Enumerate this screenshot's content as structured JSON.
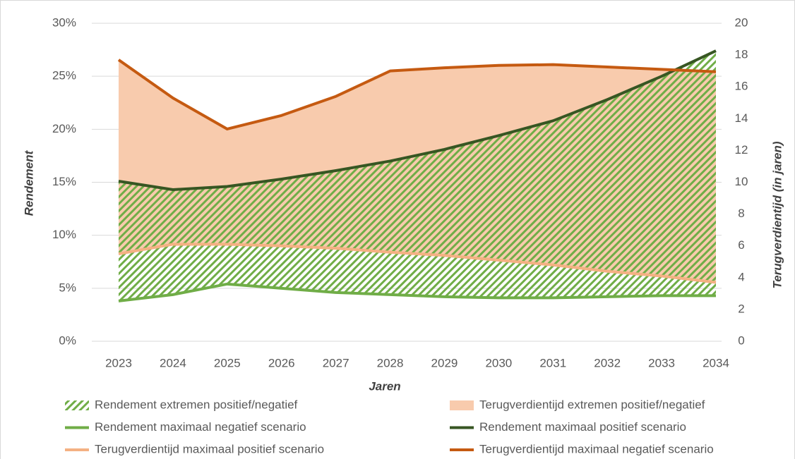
{
  "chart_data": {
    "type": "line",
    "x_label": "Jaren",
    "y_label": "Rendement",
    "y2_label": "Terugverdientijd (in jaren)",
    "categories": [
      "2023",
      "2024",
      "2025",
      "2026",
      "2027",
      "2028",
      "2029",
      "2030",
      "2031",
      "2032",
      "2033",
      "2034"
    ],
    "ylim": [
      0,
      30
    ],
    "yticks": [
      {
        "value": 0,
        "label": "0%"
      },
      {
        "value": 5,
        "label": "5%"
      },
      {
        "value": 10,
        "label": "10%"
      },
      {
        "value": 15,
        "label": "15%"
      },
      {
        "value": 20,
        "label": "20%"
      },
      {
        "value": 25,
        "label": "25%"
      },
      {
        "value": 30,
        "label": "30%"
      }
    ],
    "y2lim": [
      0,
      20
    ],
    "y2ticks": [
      0,
      2,
      4,
      6,
      8,
      10,
      12,
      14,
      16,
      18,
      20
    ],
    "grid": true,
    "bands": [
      {
        "name": "Rendement extremen positief/negatief",
        "color": "#70ad47",
        "pattern": "hatch",
        "axis": "y"
      },
      {
        "name": "Terugverdientijd extremen positief/negatief",
        "color": "#f8cbad",
        "axis": "y2"
      }
    ],
    "series": [
      {
        "name": "Rendement maximaal negatief scenario",
        "color": "#70ad47",
        "axis": "y",
        "values": [
          3.8,
          4.4,
          5.4,
          5.0,
          4.6,
          4.4,
          4.2,
          4.1,
          4.1,
          4.2,
          4.3,
          4.3
        ]
      },
      {
        "name": "Rendement maximaal positief scenario",
        "color": "#375623",
        "axis": "y",
        "values": [
          15.1,
          14.3,
          14.6,
          15.3,
          16.1,
          17.0,
          18.1,
          19.4,
          20.8,
          22.8,
          25.0,
          27.4
        ]
      },
      {
        "name": "Terugverdientijd maximaal positief scenario",
        "color": "#f4b183",
        "axis": "y2",
        "values": [
          5.5,
          6.1,
          6.1,
          6.0,
          5.85,
          5.6,
          5.4,
          5.1,
          4.8,
          4.4,
          4.1,
          3.7
        ]
      },
      {
        "name": "Terugverdientijd maximaal negatief scenario",
        "color": "#c55a11",
        "axis": "y2",
        "values": [
          17.7,
          15.3,
          13.35,
          14.2,
          15.4,
          17.0,
          17.2,
          17.35,
          17.4,
          17.25,
          17.1,
          16.95
        ]
      }
    ]
  }
}
